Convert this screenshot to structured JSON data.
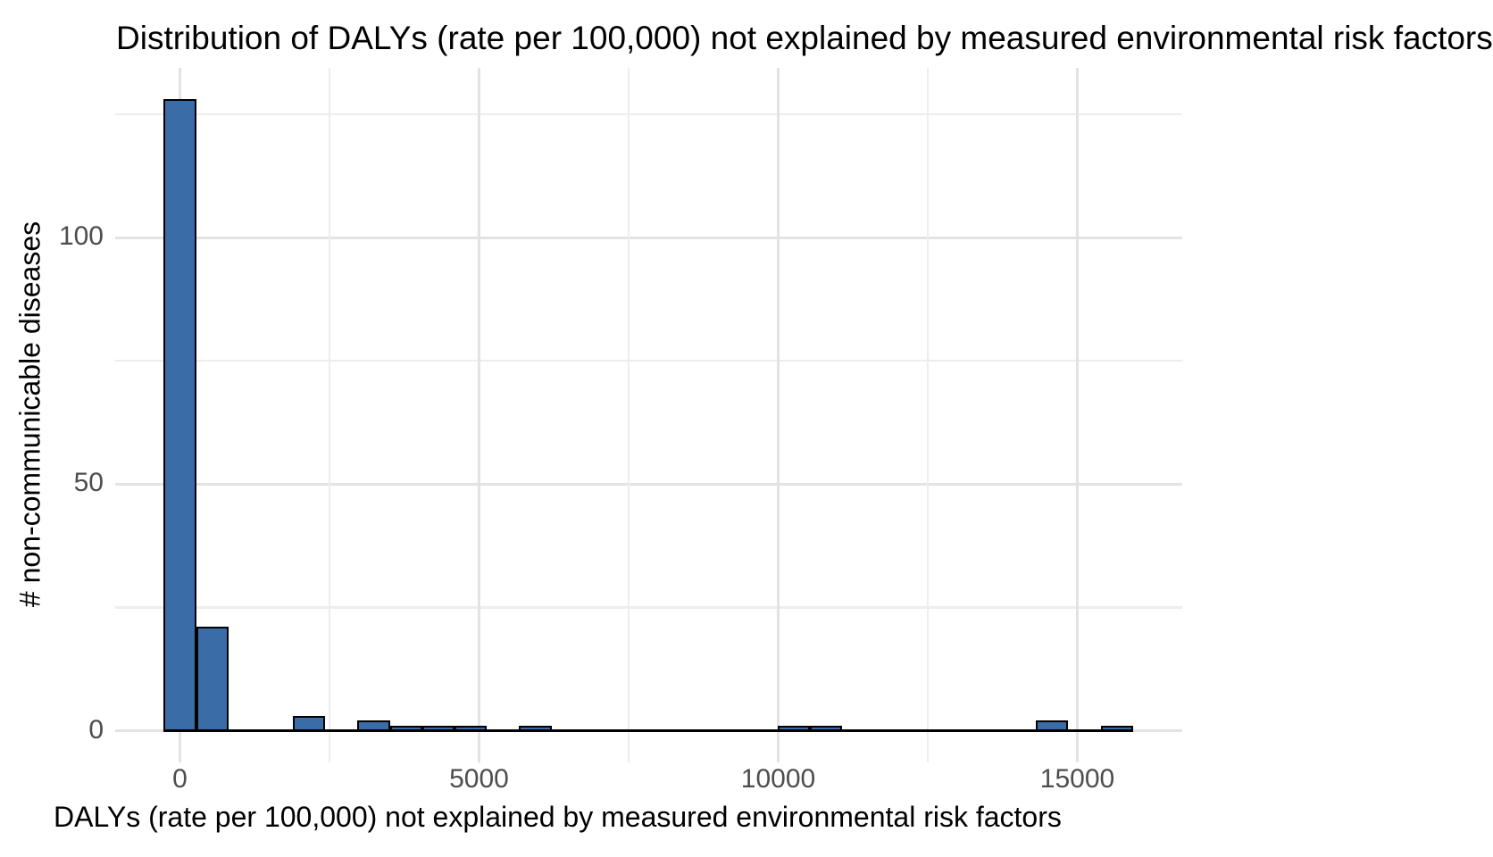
{
  "chart_data": {
    "type": "bar",
    "subtype": "histogram",
    "title": "Distribution of DALYs (rate per 100,000) not explained by measured environmental risk factors",
    "xlabel": "DALYs (rate per 100,000) not explained by measured environmental risk factors",
    "ylabel": "# non-communicable diseases",
    "bin_width": 540,
    "bins": [
      {
        "center": 0,
        "count": 128
      },
      {
        "center": 540,
        "count": 21
      },
      {
        "center": 2160,
        "count": 3
      },
      {
        "center": 3240,
        "count": 2
      },
      {
        "center": 3780,
        "count": 1
      },
      {
        "center": 4320,
        "count": 1
      },
      {
        "center": 4860,
        "count": 1
      },
      {
        "center": 5940,
        "count": 1
      },
      {
        "center": 10260,
        "count": 1
      },
      {
        "center": 10800,
        "count": 1
      },
      {
        "center": 14580,
        "count": 2
      },
      {
        "center": 15660,
        "count": 1
      }
    ],
    "data_x_range": [
      -270,
      15930
    ],
    "x_ticks": [
      0,
      5000,
      10000,
      15000
    ],
    "x_minor_ticks": [
      2500,
      7500,
      12500
    ],
    "y_ticks": [
      0,
      50,
      100
    ],
    "y_minor_ticks": [
      25,
      75,
      125
    ],
    "xlim": [
      -1080,
      16740
    ],
    "ylim": [
      -6.4,
      134.4
    ],
    "grid": "on",
    "legend": "none"
  },
  "colors": {
    "bar_fill": "#3a6da7",
    "bar_stroke": "#000000",
    "grid_major": "#e3e3e3",
    "grid_minor": "#ededed",
    "tick_label": "#4d4d4d",
    "text": "#000000",
    "background": "#ffffff"
  }
}
